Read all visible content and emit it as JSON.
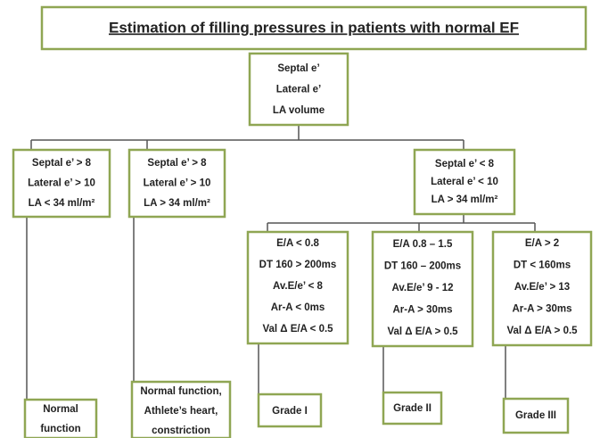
{
  "title": "Estimation of filling pressures in patients with normal EF",
  "nodes": [
    {
      "lines": [
        "Septal e’",
        "Lateral e’",
        "LA volume"
      ]
    },
    {
      "lines": [
        "Septal e’ > 8",
        "Lateral e’ > 10",
        "LA < 34 ml/m²"
      ]
    },
    {
      "lines": [
        "Septal e’ > 8",
        "Lateral e’ > 10",
        "LA > 34 ml/m²"
      ]
    },
    {
      "lines": [
        "Septal e’ < 8",
        "Lateral e’ < 10",
        "LA > 34 ml/m²"
      ]
    },
    {
      "lines": [
        "E/A < 0.8",
        "DT 160 > 200ms",
        "Av.E/e’ < 8",
        "Ar-A < 0ms",
        "Val Δ E/A < 0.5"
      ]
    },
    {
      "lines": [
        "E/A 0.8 – 1.5",
        "DT 160 – 200ms",
        "Av.E/e’ 9 - 12",
        "Ar-A > 30ms",
        "Val Δ E/A > 0.5"
      ]
    },
    {
      "lines": [
        "E/A > 2",
        "DT  < 160ms",
        "Av.E/e’ > 13",
        "Ar-A > 30ms",
        "Val Δ E/A > 0.5"
      ]
    },
    {
      "lines": [
        "Normal",
        "function"
      ]
    },
    {
      "lines": [
        "Normal function,",
        "Athlete’s heart,",
        "constriction"
      ]
    },
    {
      "lines": [
        "Grade I"
      ]
    },
    {
      "lines": [
        "Grade II"
      ]
    },
    {
      "lines": [
        "Grade III"
      ]
    }
  ]
}
